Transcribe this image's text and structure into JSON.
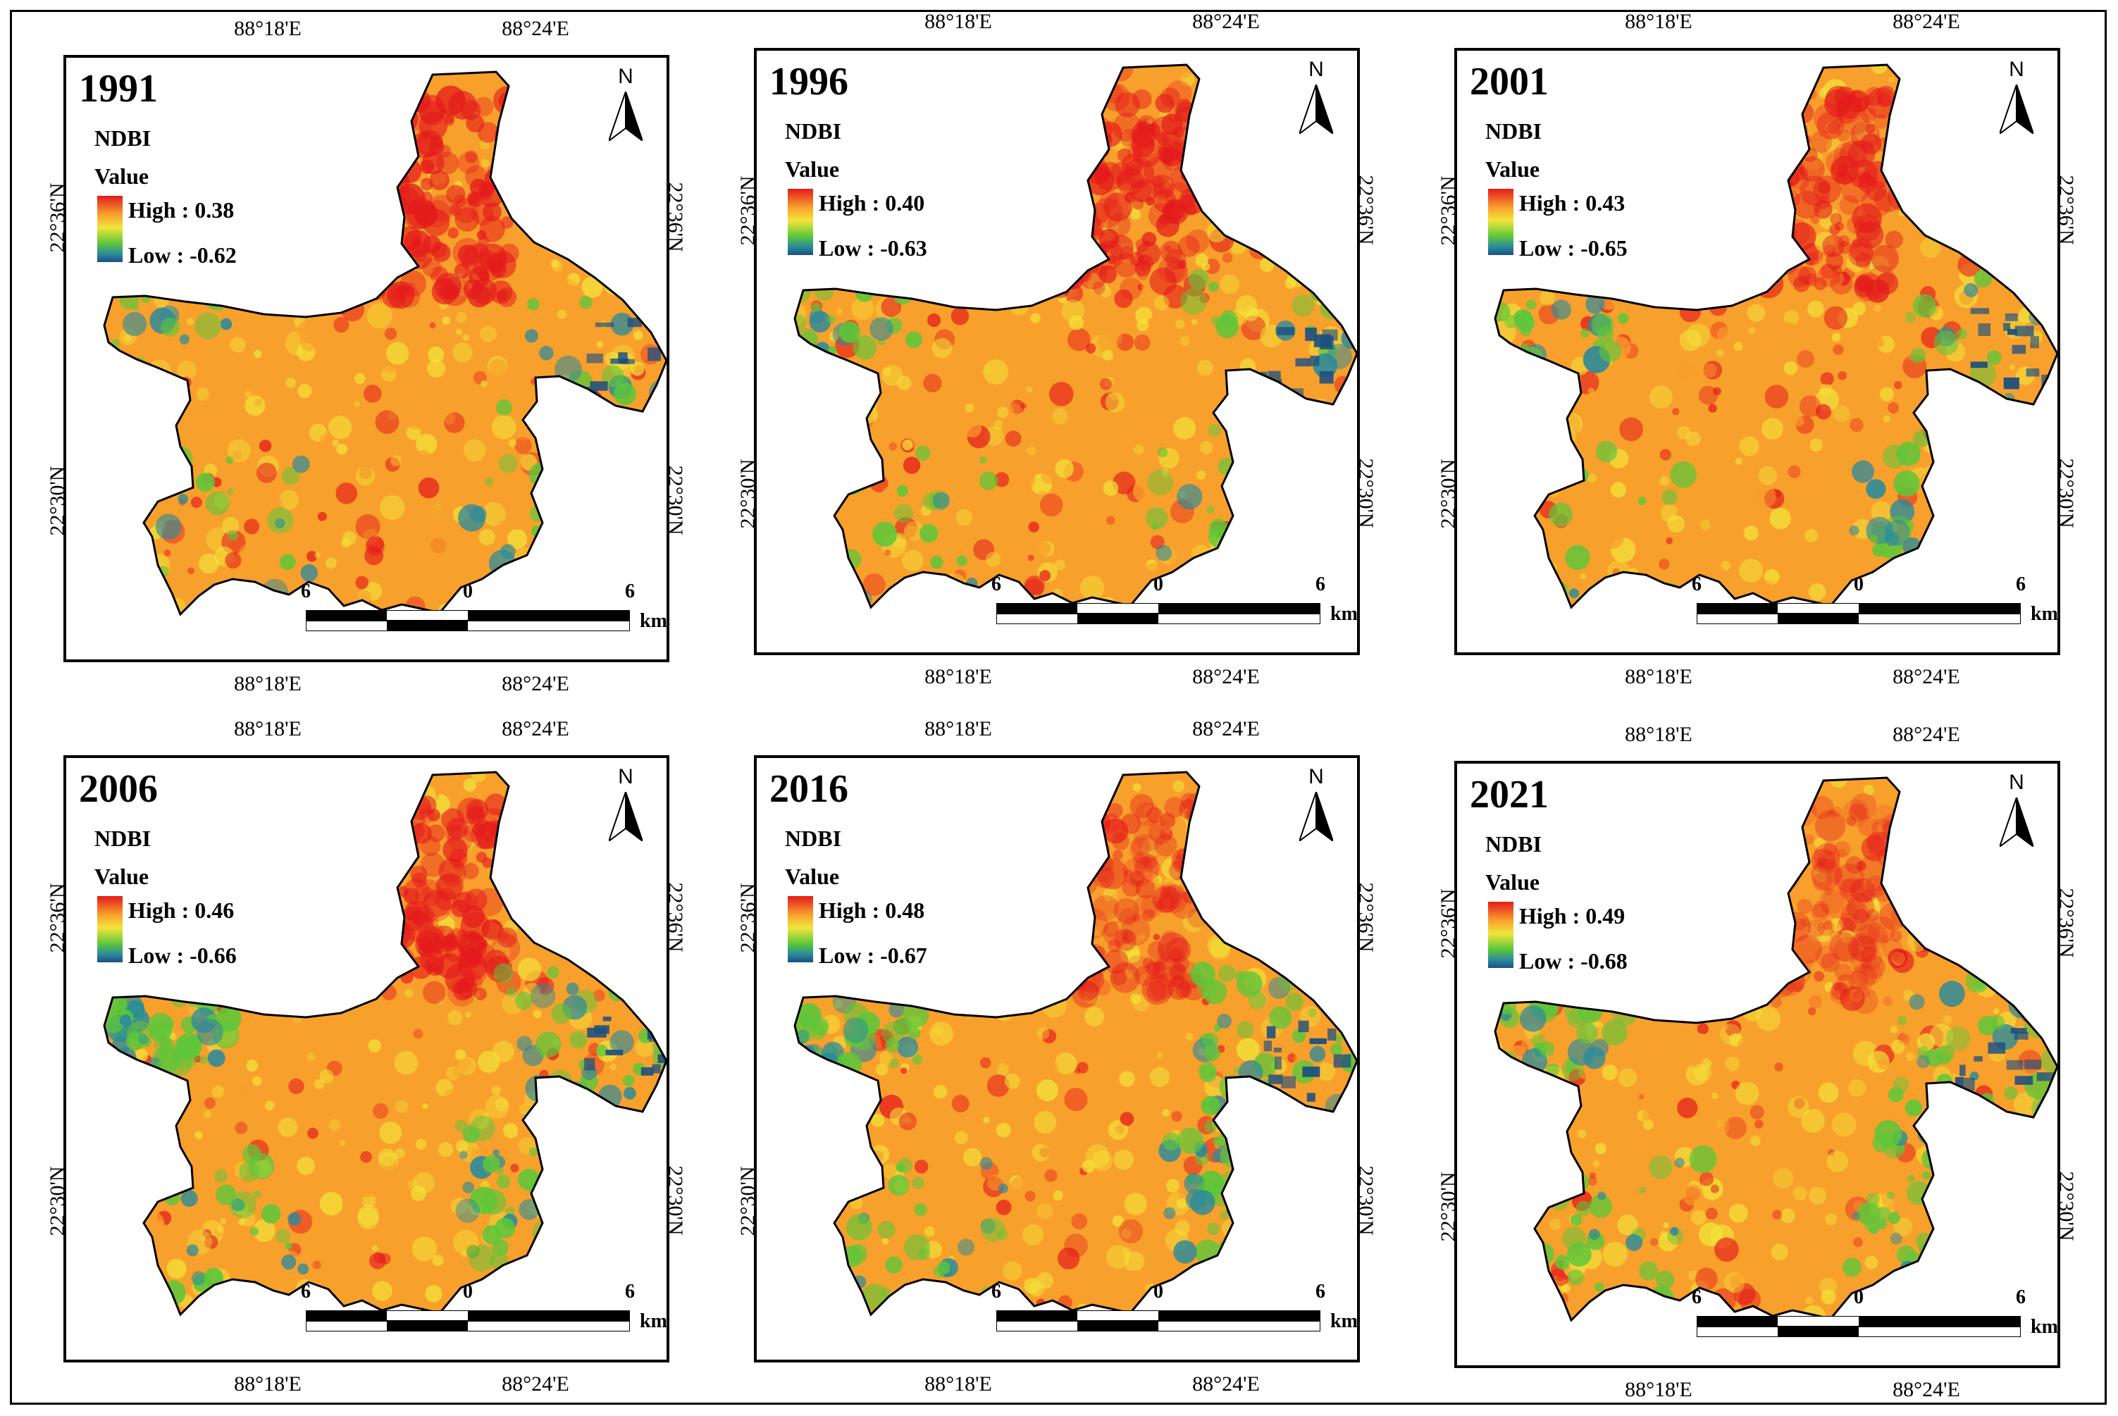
{
  "figure": {
    "panels": [
      {
        "year": "1991",
        "high": "High : 0.38",
        "low": "Low : -0.62"
      },
      {
        "year": "1996",
        "high": "High : 0.40",
        "low": "Low : -0.63"
      },
      {
        "year": "2001",
        "high": "High : 0.43",
        "low": "Low : -0.65"
      },
      {
        "year": "2006",
        "high": "High : 0.46",
        "low": "Low : -0.66"
      },
      {
        "year": "2016",
        "high": "High : 0.48",
        "low": "Low : -0.67"
      },
      {
        "year": "2021",
        "high": "High : 0.49",
        "low": "Low : -0.68"
      }
    ],
    "legend": {
      "title": "NDBI",
      "subtitle": "Value"
    },
    "north_label": "N",
    "coords": {
      "lon_left": "88°18'E",
      "lon_right": "88°24'E",
      "lat_top": "22°36'N",
      "lat_bottom": "22°30'N"
    },
    "scalebar": {
      "left": "6",
      "mid": "0",
      "right": "6",
      "unit": "km"
    },
    "colors": {
      "high": "#e41a1c",
      "orange": "#f8a02c",
      "yellow": "#f2e53a",
      "green": "#5cc73a",
      "teal": "#2a8a9c",
      "low": "#1b4f82"
    }
  }
}
